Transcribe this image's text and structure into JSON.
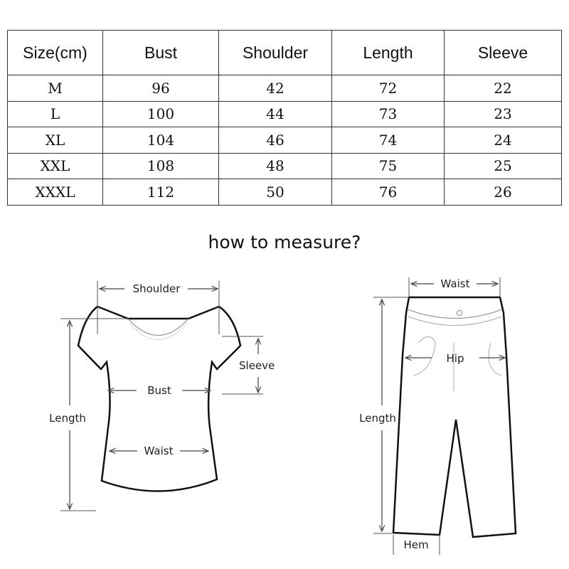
{
  "table": {
    "headers": [
      "Size(cm)",
      "Bust",
      "Shoulder",
      "Length",
      "Sleeve"
    ],
    "rows": [
      [
        "M",
        "96",
        "42",
        "72",
        "22"
      ],
      [
        "L",
        "100",
        "44",
        "73",
        "23"
      ],
      [
        "XL",
        "104",
        "46",
        "74",
        "24"
      ],
      [
        "XXL",
        "108",
        "48",
        "75",
        "25"
      ],
      [
        "XXXL",
        "112",
        "50",
        "76",
        "26"
      ]
    ]
  },
  "title": "how to measure?",
  "shirt": {
    "shoulder": "Shoulder",
    "sleeve": "Sleeve",
    "bust": "Bust",
    "length": "Length",
    "waist": "Waist"
  },
  "pants": {
    "waist": "Waist",
    "hip": "Hip",
    "length": "Length",
    "hem": "Hem"
  }
}
